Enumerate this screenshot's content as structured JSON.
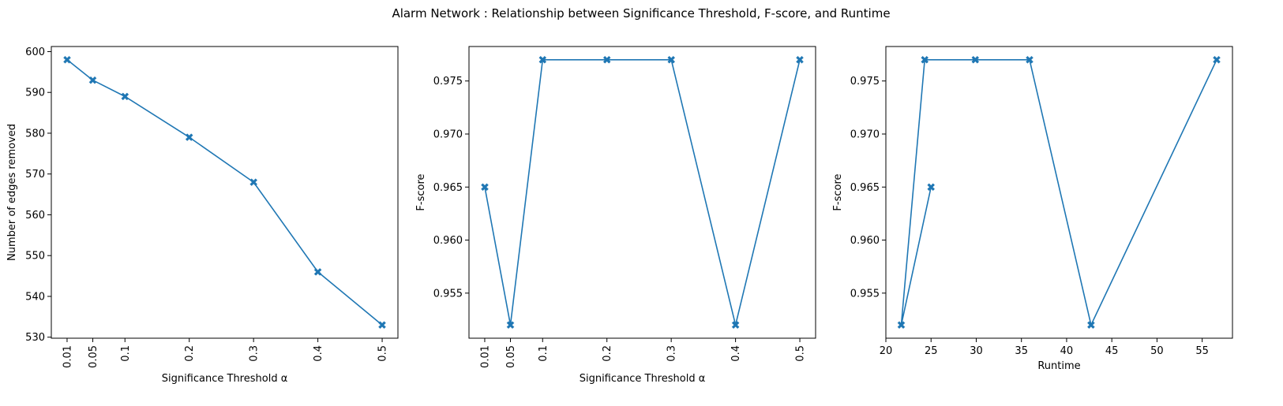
{
  "title": "Alarm Network : Relationship between Significance Threshold, F-score, and Runtime",
  "colors": {
    "series": "#1f77b4",
    "axes": "#000000",
    "background": "#ffffff"
  },
  "chart_data": [
    {
      "type": "line",
      "marker": "x-filled",
      "xlabel": "Significance Threshold α",
      "ylabel": "Number of edges removed",
      "xlim": [
        -0.0145,
        0.5245
      ],
      "ylim": [
        529.75,
        601.25
      ],
      "xticks": [
        0.01,
        0.05,
        0.1,
        0.2,
        0.3,
        0.4,
        0.5
      ],
      "xtick_labels": [
        "0.01",
        "0.05",
        "0.1",
        "0.2",
        "0.3",
        "0.4",
        "0.5"
      ],
      "xtick_rotation": 90,
      "yticks": [
        530,
        540,
        550,
        560,
        570,
        580,
        590,
        600
      ],
      "ytick_labels": [
        "530",
        "540",
        "550",
        "560",
        "570",
        "580",
        "590",
        "600"
      ],
      "x": [
        0.01,
        0.05,
        0.1,
        0.2,
        0.3,
        0.4,
        0.5
      ],
      "y": [
        598,
        593,
        589,
        579,
        568,
        546,
        533
      ]
    },
    {
      "type": "line",
      "marker": "x-filled",
      "xlabel": "Significance Threshold α",
      "ylabel": "F-score",
      "xlim": [
        -0.0145,
        0.5245
      ],
      "ylim": [
        0.95075,
        0.97825
      ],
      "xticks": [
        0.01,
        0.05,
        0.1,
        0.2,
        0.3,
        0.4,
        0.5
      ],
      "xtick_labels": [
        "0.01",
        "0.05",
        "0.1",
        "0.2",
        "0.3",
        "0.4",
        "0.5"
      ],
      "xtick_rotation": 90,
      "yticks": [
        0.955,
        0.96,
        0.965,
        0.97,
        0.975
      ],
      "ytick_labels": [
        "0.955",
        "0.960",
        "0.965",
        "0.970",
        "0.975"
      ],
      "x": [
        0.01,
        0.05,
        0.1,
        0.2,
        0.3,
        0.4,
        0.5
      ],
      "y": [
        0.965,
        0.952,
        0.977,
        0.977,
        0.977,
        0.952,
        0.977
      ]
    },
    {
      "type": "line",
      "marker": "x-filled",
      "xlabel": "Runtime",
      "ylabel": "F-score",
      "xlim": [
        20.0,
        58.35
      ],
      "ylim": [
        0.95075,
        0.97825
      ],
      "xticks": [
        20,
        25,
        30,
        35,
        40,
        45,
        50,
        55
      ],
      "xtick_labels": [
        "20",
        "25",
        "30",
        "35",
        "40",
        "45",
        "50",
        "55"
      ],
      "xtick_rotation": 0,
      "yticks": [
        0.955,
        0.96,
        0.965,
        0.97,
        0.975
      ],
      "ytick_labels": [
        "0.955",
        "0.960",
        "0.965",
        "0.970",
        "0.975"
      ],
      "x": [
        25.0,
        21.7,
        24.3,
        29.9,
        35.9,
        42.7,
        56.6
      ],
      "y": [
        0.965,
        0.952,
        0.977,
        0.977,
        0.977,
        0.952,
        0.977
      ]
    }
  ]
}
